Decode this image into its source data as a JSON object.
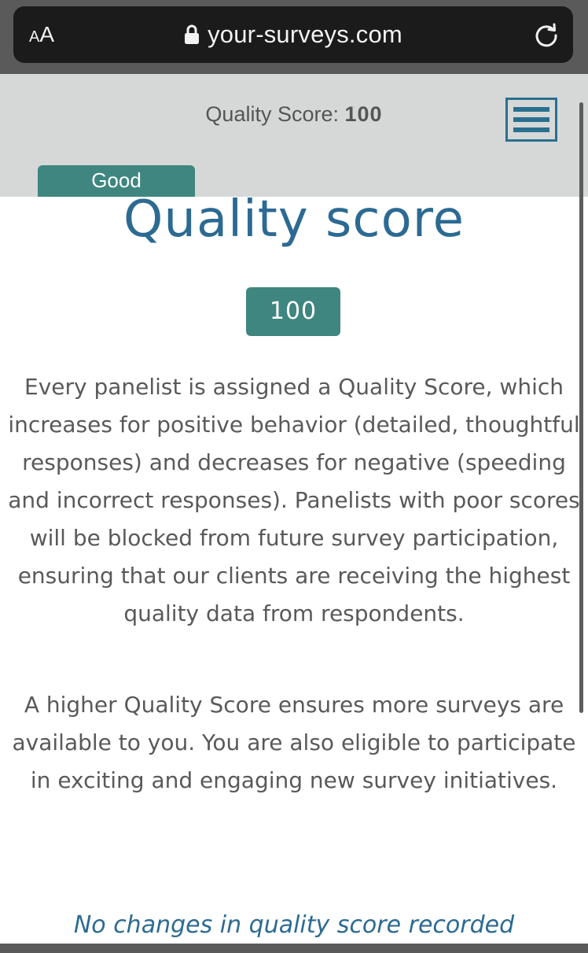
{
  "browser": {
    "text_size_small": "A",
    "text_size_large": "A",
    "url": "your-surveys.com",
    "lock_icon": "lock-icon",
    "reload_icon": "reload-icon"
  },
  "header": {
    "score_label": "Quality Score: ",
    "score_value": "100",
    "menu_icon": "hamburger-menu-icon",
    "status_badge": "Good"
  },
  "main": {
    "title": "Quality score",
    "score": "100",
    "paragraph_1": "Every panelist is assigned a Quality Score, which increases for positive behavior (detailed, thoughtful responses) and decreases for negative (speeding and incorrect responses). Panelists with poor scores will be blocked from future survey participation, ensuring that our clients are receiving the highest quality data from respondents.",
    "paragraph_2": "A higher Quality Score ensures more surveys are available to you. You are also eligible to participate in exciting and engaging new survey initiatives.",
    "history_note": "No changes in quality score recorded"
  },
  "colors": {
    "accent_blue": "#2c6a92",
    "badge_teal": "#3f8680",
    "header_bg": "#d6d8d8",
    "body_text": "#595959"
  }
}
